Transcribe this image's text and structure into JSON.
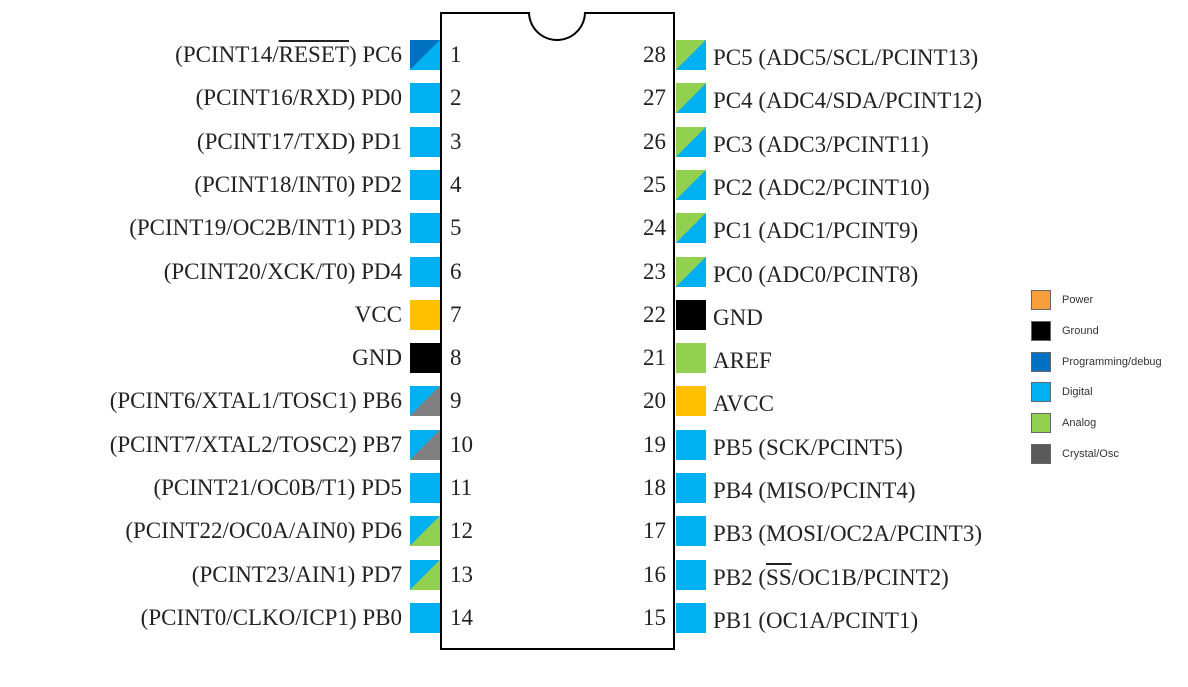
{
  "colors": {
    "power": "#ffc000",
    "ground": "#000000",
    "programming": "#0070c0",
    "digital": "#00b0f0",
    "analog": "#92d050",
    "crystal": "#808080",
    "legend_power": "#f79e3b",
    "legend_crystal": "#595959"
  },
  "left_pins": [
    {
      "num": "1",
      "pre": "(PCINT14/",
      "over": "RESET",
      "post": ") PC6",
      "type": [
        "programming",
        "digital"
      ]
    },
    {
      "num": "2",
      "pre": "(PCINT16/RXD) PD0",
      "over": "",
      "post": "",
      "type": [
        "digital"
      ]
    },
    {
      "num": "3",
      "pre": "(PCINT17/TXD) PD1",
      "over": "",
      "post": "",
      "type": [
        "digital"
      ]
    },
    {
      "num": "4",
      "pre": "(PCINT18/INT0) PD2",
      "over": "",
      "post": "",
      "type": [
        "digital"
      ]
    },
    {
      "num": "5",
      "pre": "(PCINT19/OC2B/INT1) PD3",
      "over": "",
      "post": "",
      "type": [
        "digital"
      ]
    },
    {
      "num": "6",
      "pre": "(PCINT20/XCK/T0) PD4",
      "over": "",
      "post": "",
      "type": [
        "digital"
      ]
    },
    {
      "num": "7",
      "pre": "VCC",
      "over": "",
      "post": "",
      "type": [
        "power"
      ]
    },
    {
      "num": "8",
      "pre": "GND",
      "over": "",
      "post": "",
      "type": [
        "ground"
      ]
    },
    {
      "num": "9",
      "pre": "(PCINT6/XTAL1/TOSC1) PB6",
      "over": "",
      "post": "",
      "type": [
        "digital",
        "crystal"
      ]
    },
    {
      "num": "10",
      "pre": "(PCINT7/XTAL2/TOSC2) PB7",
      "over": "",
      "post": "",
      "type": [
        "digital",
        "crystal"
      ]
    },
    {
      "num": "11",
      "pre": "(PCINT21/OC0B/T1) PD5",
      "over": "",
      "post": "",
      "type": [
        "digital"
      ]
    },
    {
      "num": "12",
      "pre": "(PCINT22/OC0A/AIN0) PD6",
      "over": "",
      "post": "",
      "type": [
        "digital",
        "analog"
      ]
    },
    {
      "num": "13",
      "pre": "(PCINT23/AIN1) PD7",
      "over": "",
      "post": "",
      "type": [
        "digital",
        "analog"
      ]
    },
    {
      "num": "14",
      "pre": "(PCINT0/CLKO/ICP1) PB0",
      "over": "",
      "post": "",
      "type": [
        "digital"
      ]
    }
  ],
  "right_pins": [
    {
      "num": "28",
      "pre": "PC5 (ADC5/SCL/PCINT13)",
      "over": "",
      "post": "",
      "type": [
        "analog",
        "digital"
      ]
    },
    {
      "num": "27",
      "pre": "PC4 (ADC4/SDA/PCINT12)",
      "over": "",
      "post": "",
      "type": [
        "analog",
        "digital"
      ]
    },
    {
      "num": "26",
      "pre": "PC3 (ADC3/PCINT11)",
      "over": "",
      "post": "",
      "type": [
        "analog",
        "digital"
      ]
    },
    {
      "num": "25",
      "pre": "PC2 (ADC2/PCINT10)",
      "over": "",
      "post": "",
      "type": [
        "analog",
        "digital"
      ]
    },
    {
      "num": "24",
      "pre": "PC1 (ADC1/PCINT9)",
      "over": "",
      "post": "",
      "type": [
        "analog",
        "digital"
      ]
    },
    {
      "num": "23",
      "pre": "PC0 (ADC0/PCINT8)",
      "over": "",
      "post": "",
      "type": [
        "analog",
        "digital"
      ]
    },
    {
      "num": "22",
      "pre": "GND",
      "over": "",
      "post": "",
      "type": [
        "ground"
      ]
    },
    {
      "num": "21",
      "pre": "AREF",
      "over": "",
      "post": "",
      "type": [
        "analog"
      ]
    },
    {
      "num": "20",
      "pre": "AVCC",
      "over": "",
      "post": "",
      "type": [
        "power"
      ]
    },
    {
      "num": "19",
      "pre": "PB5 (SCK/PCINT5)",
      "over": "",
      "post": "",
      "type": [
        "digital"
      ]
    },
    {
      "num": "18",
      "pre": "PB4 (MISO/PCINT4)",
      "over": "",
      "post": "",
      "type": [
        "digital"
      ]
    },
    {
      "num": "17",
      "pre": "PB3 (MOSI/OC2A/PCINT3)",
      "over": "",
      "post": "",
      "type": [
        "digital"
      ]
    },
    {
      "num": "16",
      "pre": "PB2 (",
      "over": "SS",
      "post": "/OC1B/PCINT2)",
      "type": [
        "digital"
      ]
    },
    {
      "num": "15",
      "pre": "PB1 (OC1A/PCINT1)",
      "over": "",
      "post": "",
      "type": [
        "digital"
      ]
    }
  ],
  "legend": [
    {
      "label": "Power",
      "color_key": "legend_power"
    },
    {
      "label": "Ground",
      "color_key": "ground"
    },
    {
      "label": "Programming/debug",
      "color_key": "programming"
    },
    {
      "label": "Digital",
      "color_key": "digital"
    },
    {
      "label": "Analog",
      "color_key": "analog"
    },
    {
      "label": "Crystal/Osc",
      "color_key": "legend_crystal"
    }
  ]
}
